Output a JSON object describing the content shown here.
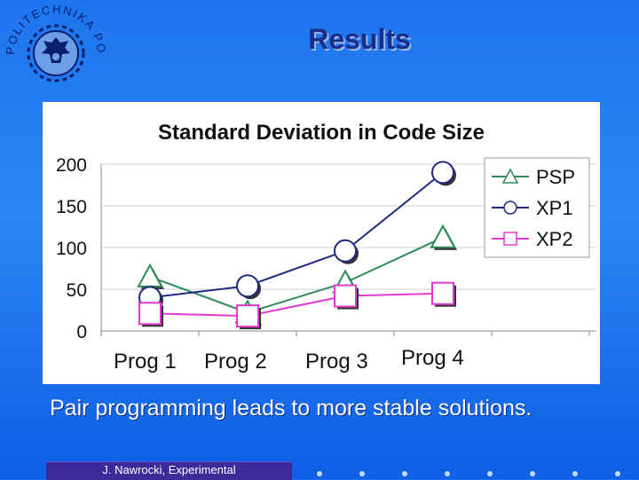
{
  "slide": {
    "title": "Results",
    "caption": "Pair programming leads to more stable solutions.",
    "footer": "J. Nawrocki, Experimental"
  },
  "logo": {
    "icon": "politechnika-poznanska-seal-icon",
    "text": "POLITECHNIKA POZNAŃSKA"
  },
  "colors": {
    "background": "#1e74ee",
    "title": "#1a2c8c",
    "PSP": "#2e8b57",
    "XP1": "#1f2a80",
    "XP2": "#e03ad0"
  },
  "chart_data": {
    "type": "line",
    "title": "Standard Deviation in Code Size",
    "categories": [
      "Prog 1",
      "Prog 2",
      "Prog 3",
      "Prog 4"
    ],
    "ylim": [
      0,
      200
    ],
    "yticks": [
      0,
      50,
      100,
      150,
      200
    ],
    "grid": true,
    "legend_position": "top-right",
    "series": [
      {
        "name": "PSP",
        "marker": "triangle",
        "values": [
          65,
          22,
          58,
          112
        ]
      },
      {
        "name": "XP1",
        "marker": "circle",
        "values": [
          40,
          54,
          96,
          190
        ]
      },
      {
        "name": "XP2",
        "marker": "square",
        "values": [
          21,
          18,
          42,
          45
        ]
      }
    ]
  }
}
